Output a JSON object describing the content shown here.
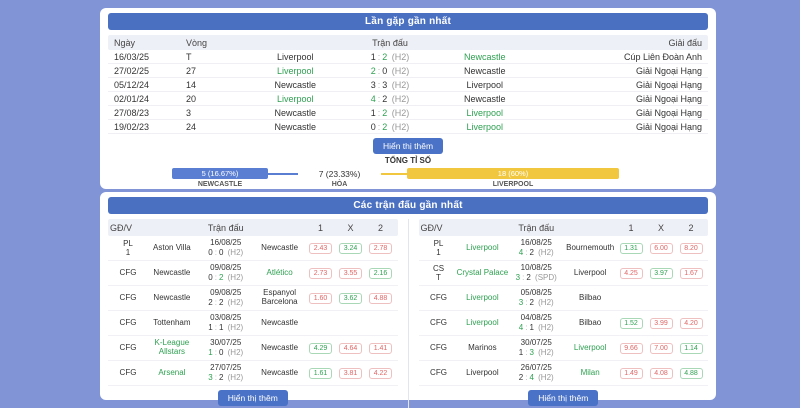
{
  "theme": {
    "page_bg": "#8094d6",
    "header_bg": "#4a70c2",
    "win_green": "#2fa152",
    "odds_red": "#e06666",
    "bar_blue": "#5a7fd2",
    "bar_yellow": "#f0c73e"
  },
  "score_separator": ":",
  "h2h": {
    "title": "Lần gặp gần nhất",
    "columns": {
      "date": "Ngày",
      "round": "Vòng",
      "match": "Trận đấu",
      "league": "Giải đấu"
    },
    "rows": [
      {
        "date": "16/03/25",
        "round": "T",
        "home": "Liverpool",
        "score_home": "1",
        "score_away": "2",
        "suffix": "(H2)",
        "away": "Newcastle",
        "league": "Cúp Liên Đoàn Anh",
        "winner": "away"
      },
      {
        "date": "27/02/25",
        "round": "27",
        "home": "Liverpool",
        "score_home": "2",
        "score_away": "0",
        "suffix": "(H2)",
        "away": "Newcastle",
        "league": "Giải Ngoại Hạng",
        "winner": "home"
      },
      {
        "date": "05/12/24",
        "round": "14",
        "home": "Newcastle",
        "score_home": "3",
        "score_away": "3",
        "suffix": "(H2)",
        "away": "Liverpool",
        "league": "Giải Ngoại Hạng",
        "winner": "draw"
      },
      {
        "date": "02/01/24",
        "round": "20",
        "home": "Liverpool",
        "score_home": "4",
        "score_away": "2",
        "suffix": "(H2)",
        "away": "Newcastle",
        "league": "Giải Ngoại Hạng",
        "winner": "home"
      },
      {
        "date": "27/08/23",
        "round": "3",
        "home": "Newcastle",
        "score_home": "1",
        "score_away": "2",
        "suffix": "(H2)",
        "away": "Liverpool",
        "league": "Giải Ngoại Hạng",
        "winner": "away"
      },
      {
        "date": "19/02/23",
        "round": "24",
        "home": "Newcastle",
        "score_home": "0",
        "score_away": "2",
        "suffix": "(H2)",
        "away": "Liverpool",
        "league": "Giải Ngoại Hạng",
        "winner": "away"
      }
    ],
    "show_more_label": "Hiển thị thêm",
    "total_label": "TỔNG TỈ SỐ",
    "summary": {
      "home": {
        "team": "NEWCASTLE",
        "value": "5 (16.67%)"
      },
      "draw": {
        "team": "HÒA",
        "value": "7 (23.33%)"
      },
      "away": {
        "team": "LIVERPOOL",
        "value": "18 (60%)"
      }
    }
  },
  "recent": {
    "title": "Các trận đấu gần nhất",
    "columns": {
      "gdv": "GĐ/V",
      "match": "Trận đấu",
      "one": "1",
      "x": "X",
      "two": "2"
    },
    "show_more_label": "Hiển thị thêm",
    "tables": [
      {
        "rows": [
          {
            "gdv": "PL\n1",
            "home": "Aston Villa",
            "date": "16/08/25",
            "score_home": "0",
            "score_away": "0",
            "suffix": "(H2)",
            "away": "Newcastle",
            "winner": "draw",
            "odds": [
              {
                "value": "2.43",
                "state": "red"
              },
              {
                "value": "3.24",
                "state": "green"
              },
              {
                "value": "2.78",
                "state": "red"
              }
            ]
          },
          {
            "gdv": "CFG",
            "home": "Newcastle",
            "date": "09/08/25",
            "score_home": "0",
            "score_away": "2",
            "suffix": "(H2)",
            "away": "Atlético",
            "winner": "away",
            "odds": [
              {
                "value": "2.73",
                "state": "red"
              },
              {
                "value": "3.55",
                "state": "red"
              },
              {
                "value": "2.16",
                "state": "green"
              }
            ]
          },
          {
            "gdv": "CFG",
            "home": "Newcastle",
            "date": "09/08/25",
            "score_home": "2",
            "score_away": "2",
            "suffix": "(H2)",
            "away": "Espanyol Barcelona",
            "winner": "draw",
            "odds": [
              {
                "value": "1.60",
                "state": "red"
              },
              {
                "value": "3.62",
                "state": "green"
              },
              {
                "value": "4.88",
                "state": "red"
              }
            ]
          },
          {
            "gdv": "CFG",
            "home": "Tottenham",
            "date": "03/08/25",
            "score_home": "1",
            "score_away": "1",
            "suffix": "(H2)",
            "away": "Newcastle",
            "winner": "draw",
            "odds": []
          },
          {
            "gdv": "CFG",
            "home": "K-League Allstars",
            "date": "30/07/25",
            "score_home": "1",
            "score_away": "0",
            "suffix": "(H2)",
            "away": "Newcastle",
            "winner": "home",
            "odds": [
              {
                "value": "4.29",
                "state": "green"
              },
              {
                "value": "4.64",
                "state": "red"
              },
              {
                "value": "1.41",
                "state": "red"
              }
            ]
          },
          {
            "gdv": "CFG",
            "home": "Arsenal",
            "date": "27/07/25",
            "score_home": "3",
            "score_away": "2",
            "suffix": "(H2)",
            "away": "Newcastle",
            "winner": "home",
            "odds": [
              {
                "value": "1.61",
                "state": "green"
              },
              {
                "value": "3.81",
                "state": "red"
              },
              {
                "value": "4.22",
                "state": "red"
              }
            ]
          }
        ]
      },
      {
        "rows": [
          {
            "gdv": "PL\n1",
            "home": "Liverpool",
            "date": "16/08/25",
            "score_home": "4",
            "score_away": "2",
            "suffix": "(H2)",
            "away": "Bournemouth",
            "winner": "home",
            "odds": [
              {
                "value": "1.31",
                "state": "green"
              },
              {
                "value": "6.00",
                "state": "red"
              },
              {
                "value": "8.20",
                "state": "red"
              }
            ]
          },
          {
            "gdv": "CS\nT",
            "home": "Crystal Palace",
            "date": "10/08/25",
            "score_home": "3",
            "score_away": "2",
            "suffix": "(SPD)",
            "away": "Liverpool",
            "winner": "home",
            "odds": [
              {
                "value": "4.25",
                "state": "red"
              },
              {
                "value": "3.97",
                "state": "green"
              },
              {
                "value": "1.67",
                "state": "red"
              }
            ]
          },
          {
            "gdv": "CFG",
            "home": "Liverpool",
            "date": "05/08/25",
            "score_home": "3",
            "score_away": "2",
            "suffix": "(H2)",
            "away": "Bilbao",
            "winner": "home",
            "odds": []
          },
          {
            "gdv": "CFG",
            "home": "Liverpool",
            "date": "04/08/25",
            "score_home": "4",
            "score_away": "1",
            "suffix": "(H2)",
            "away": "Bilbao",
            "winner": "home",
            "odds": [
              {
                "value": "1.52",
                "state": "green"
              },
              {
                "value": "3.99",
                "state": "red"
              },
              {
                "value": "4.20",
                "state": "red"
              }
            ]
          },
          {
            "gdv": "CFG",
            "home": "Marinos",
            "date": "30/07/25",
            "score_home": "1",
            "score_away": "3",
            "suffix": "(H2)",
            "away": "Liverpool",
            "winner": "away",
            "odds": [
              {
                "value": "9.66",
                "state": "red"
              },
              {
                "value": "7.00",
                "state": "red"
              },
              {
                "value": "1.14",
                "state": "green"
              }
            ]
          },
          {
            "gdv": "CFG",
            "home": "Liverpool",
            "date": "26/07/25",
            "score_home": "2",
            "score_away": "4",
            "suffix": "(H2)",
            "away": "Milan",
            "winner": "away",
            "odds": [
              {
                "value": "1.49",
                "state": "red"
              },
              {
                "value": "4.08",
                "state": "red"
              },
              {
                "value": "4.88",
                "state": "green"
              }
            ]
          }
        ]
      }
    ]
  }
}
